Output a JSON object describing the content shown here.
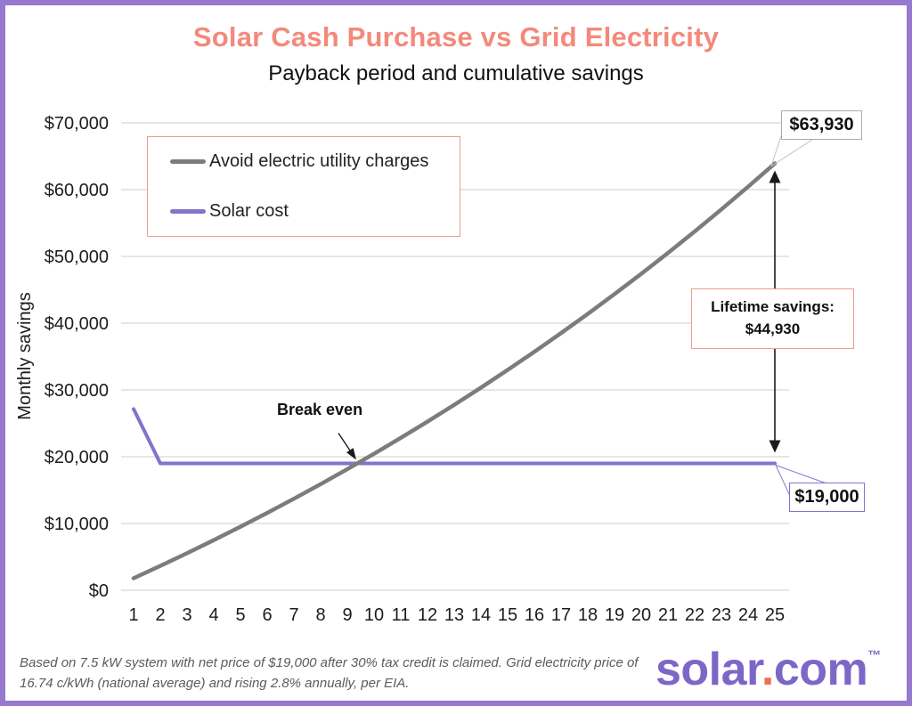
{
  "frame": {
    "border_color": "#9678CE",
    "background": "#FFFFFF"
  },
  "header": {
    "title": "Solar Cash Purchase vs Grid Electricity",
    "subtitle": "Payback period and cumulative savings",
    "title_color": "#F4897B"
  },
  "legend": {
    "border_color": "#EE9C8F",
    "items": [
      {
        "label": "Avoid electric utility charges",
        "color": "#7C7C7C"
      },
      {
        "label": "Solar cost",
        "color": "#8273CB"
      }
    ]
  },
  "chart_data": {
    "type": "line",
    "title": "Solar Cash Purchase vs Grid Electricity",
    "subtitle": "Payback period and cumulative savings",
    "xlabel": "",
    "ylabel": "Monthly savings",
    "x": [
      1,
      2,
      3,
      4,
      5,
      6,
      7,
      8,
      9,
      10,
      11,
      12,
      13,
      14,
      15,
      16,
      17,
      18,
      19,
      20,
      21,
      22,
      23,
      24,
      25
    ],
    "series": [
      {
        "name": "Avoid electric utility charges",
        "color": "#7C7C7C",
        "values": [
          1800,
          3650,
          5553,
          7508,
          9518,
          11584,
          13709,
          15892,
          18138,
          20446,
          22818,
          25257,
          27764,
          30342,
          32992,
          35715,
          38515,
          41393,
          44353,
          47394,
          50522,
          53736,
          57041,
          60438,
          63930
        ]
      },
      {
        "name": "Solar cost",
        "color": "#8273CB",
        "values": [
          27143,
          19000,
          19000,
          19000,
          19000,
          19000,
          19000,
          19000,
          19000,
          19000,
          19000,
          19000,
          19000,
          19000,
          19000,
          19000,
          19000,
          19000,
          19000,
          19000,
          19000,
          19000,
          19000,
          19000,
          19000
        ]
      }
    ],
    "y_ticks": [
      {
        "value": 0,
        "label": "$0"
      },
      {
        "value": 10000,
        "label": "$10,000"
      },
      {
        "value": 20000,
        "label": "$20,000"
      },
      {
        "value": 30000,
        "label": "$30,000"
      },
      {
        "value": 40000,
        "label": "$40,000"
      },
      {
        "value": 50000,
        "label": "$50,000"
      },
      {
        "value": 60000,
        "label": "$60,000"
      },
      {
        "value": 70000,
        "label": "$70,000"
      }
    ],
    "ylim": [
      0,
      70000
    ],
    "grid": true,
    "legend_position": "upper-left",
    "break_even_year": 9.4
  },
  "annotations": {
    "grid_end_value": "$63,930",
    "solar_end_value": "$19,000",
    "lifetime_line1": "Lifetime savings:",
    "lifetime_line2": "$44,930",
    "break_even": "Break even"
  },
  "footer": {
    "note": "Based on 7.5 kW system with net price of $19,000 after 30% tax credit is claimed. Grid electricity price of 16.74 c/kWh (national average) and rising 2.8% annually, per EIA."
  },
  "logo": {
    "part1": "solar",
    "dot": ".",
    "part2": "com",
    "tm": "™",
    "text_color": "#7C67C8",
    "dot_color": "#F0704E"
  }
}
